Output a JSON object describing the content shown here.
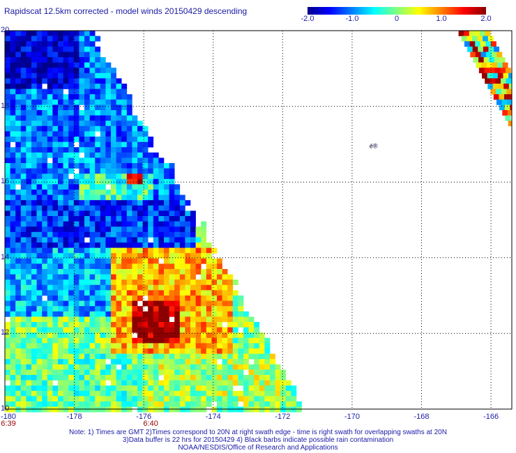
{
  "chart_data": {
    "type": "heatmap",
    "title": "Rapidscat 12.5km corrected - model winds 20150429 descending",
    "x_ticks": [
      "-180",
      "-178",
      "-176",
      "-174",
      "-172",
      "-170",
      "-168",
      "-166"
    ],
    "x_tick_values": [
      -180,
      -178,
      -176,
      -174,
      -172,
      -170,
      -168,
      -166
    ],
    "y_ticks": [
      "20",
      "18",
      "16",
      "14",
      "12",
      "10"
    ],
    "y_tick_values": [
      20,
      18,
      16,
      14,
      12,
      10
    ],
    "xlim": [
      -180,
      -165.4
    ],
    "ylim": [
      10,
      20
    ],
    "grid": true,
    "colorbar": {
      "ticks": [
        "-2.0",
        "-1.0",
        "0",
        "1.0",
        "2.0"
      ],
      "tick_values": [
        -2,
        -1,
        0,
        1,
        2
      ],
      "range": [
        -2,
        2
      ],
      "colors": [
        "#00008b",
        "#0000ff",
        "#0080ff",
        "#00ffff",
        "#80ff80",
        "#ffff00",
        "#ff8000",
        "#ff0000",
        "#8b0000"
      ]
    },
    "swath_left": {
      "description_region": "triangle bounded by lon -180 west edge, descending diagonal from (-177.5,20) to (-171.4,10)",
      "edge_points": [
        [
          -177.5,
          20
        ],
        [
          -171.4,
          10
        ]
      ],
      "regions": [
        {
          "lat_range": [
            18.5,
            20
          ],
          "lon_range": [
            -180,
            -177.8
          ],
          "value": -1.7
        },
        {
          "lat_range": [
            15.5,
            18.5
          ],
          "lon_range": [
            -180,
            -176.5
          ],
          "value": -1.0
        },
        {
          "lat_range": [
            15.2,
            16.2
          ],
          "lon_range": [
            -177.8,
            -175.8
          ],
          "value": -0.3
        },
        {
          "lat_range": [
            16.0,
            16.2
          ],
          "lon_range": [
            -176.5,
            -176.0
          ],
          "value": 1.5
        },
        {
          "lat_range": [
            14.2,
            15.5
          ],
          "lon_range": [
            -180,
            -174.5
          ],
          "value": -1.3
        },
        {
          "lat_range": [
            12.5,
            14.2
          ],
          "lon_range": [
            -180,
            -177
          ],
          "value": -0.8
        },
        {
          "lat_range": [
            11.5,
            14.2
          ],
          "lon_range": [
            -177,
            -173.5
          ],
          "value": 0.8
        },
        {
          "lat_range": [
            11.8,
            12.9
          ],
          "lon_range": [
            -176.3,
            -175.0
          ],
          "value": 1.9
        },
        {
          "lat_range": [
            10,
            11.5
          ],
          "lon_range": [
            -180,
            -176
          ],
          "value": -0.1
        },
        {
          "lat_range": [
            10,
            11.5
          ],
          "lon_range": [
            -176,
            -172
          ],
          "value": 0.2
        }
      ]
    },
    "swath_right": {
      "edge_points": [
        [
          -166.9,
          20
        ],
        [
          -165.4,
          17.5
        ]
      ],
      "value_range": [
        -1.0,
        2.0
      ]
    },
    "time_labels": [
      {
        "text": "6:39",
        "lon": -180
      },
      {
        "text": "6:40",
        "lon": -175.8
      }
    ],
    "annotations": [
      {
        "text": "é®",
        "lon": -169.5,
        "lat": 16.9
      }
    ]
  },
  "notes": [
    "Note: 1) Times are GMT 2)Times correspond to 20N at right swath edge - time is right swath for overlapping swaths at 20N",
    "3)Data buffer is 22 hrs for 20150429 4) Black barbs indicate possible rain contamination",
    "NOAA/NESDIS/Office of Research and Applications"
  ]
}
